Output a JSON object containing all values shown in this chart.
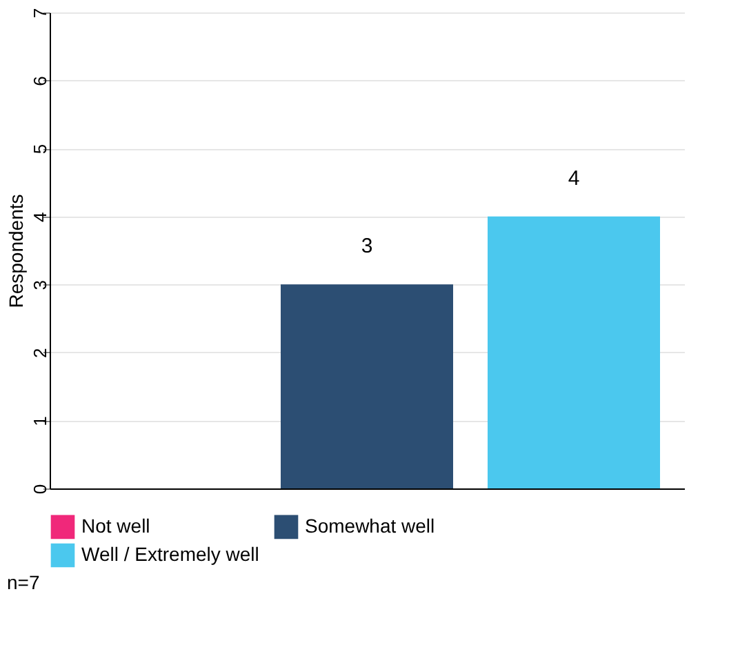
{
  "chart_data": {
    "type": "bar",
    "ylabel": "Respondents",
    "categories": [
      null,
      null,
      null
    ],
    "series": [
      {
        "name": "Not well",
        "color": "#f0287a",
        "values": [
          0,
          null,
          null
        ],
        "value_labels": [
          null,
          null,
          null
        ]
      },
      {
        "name": "Somewhat well",
        "color": "#2c4e73",
        "values": [
          null,
          3,
          null
        ],
        "value_labels": [
          null,
          "3",
          null
        ]
      },
      {
        "name": "Well / Extremely well",
        "color": "#4bc8ee",
        "values": [
          null,
          null,
          4
        ],
        "value_labels": [
          null,
          null,
          "4"
        ]
      }
    ],
    "ylim": [
      0,
      7
    ],
    "yticks": [
      0,
      1,
      2,
      3,
      4,
      5,
      6,
      7
    ],
    "grid": "y",
    "legend": "bottom",
    "annotations": [
      "n=7"
    ]
  }
}
